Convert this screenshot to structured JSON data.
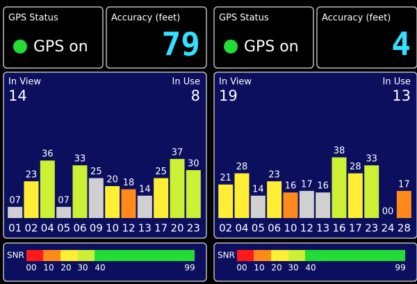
{
  "panels": [
    {
      "gps_status_label": "GPS Status",
      "gps_status": "GPS on",
      "accuracy_label": "Accuracy (feet)",
      "accuracy": 79,
      "in_view_label": "In View",
      "in_view": 14,
      "in_use_label": "In Use",
      "in_use": 8,
      "snr_label": "SNR",
      "snr_scale": [
        "00",
        "10",
        "20",
        "30",
        "40",
        "99"
      ]
    },
    {
      "gps_status_label": "GPS Status",
      "gps_status": "GPS on",
      "accuracy_label": "Accuracy (feet)",
      "accuracy": 4,
      "in_view_label": "In View",
      "in_view": 19,
      "in_use_label": "In Use",
      "in_use": 13,
      "snr_label": "SNR",
      "snr_scale": [
        "00",
        "10",
        "20",
        "30",
        "40",
        "99"
      ]
    }
  ],
  "snr_colors": [
    "#ff1a1a",
    "#ff8a1a",
    "#ffee33",
    "#ccf033",
    "#22dd33"
  ],
  "chart_data": [
    {
      "type": "bar",
      "categories": [
        "01",
        "02",
        "04",
        "05",
        "06",
        "09",
        "10",
        "12",
        "13",
        "17",
        "20",
        "23"
      ],
      "values": [
        7,
        23,
        36,
        7,
        33,
        25,
        20,
        18,
        14,
        25,
        37,
        30
      ],
      "value_labels": [
        "07",
        "23",
        "36",
        "07",
        "33",
        "25",
        "20",
        "18",
        "14",
        "25",
        "37",
        "30"
      ],
      "colors": [
        "#d0d0d0",
        "#ffee33",
        "#ccf033",
        "#d0d0d0",
        "#ccf033",
        "#d0d0d0",
        "#ffee33",
        "#ff8a1a",
        "#d0d0d0",
        "#ffee33",
        "#ccf033",
        "#ccf033"
      ],
      "ylim": [
        0,
        50
      ]
    },
    {
      "type": "bar",
      "categories": [
        "02",
        "04",
        "05",
        "06",
        "10",
        "12",
        "13",
        "16",
        "17",
        "23",
        "24",
        "28"
      ],
      "values": [
        21,
        28,
        14,
        23,
        16,
        17,
        16,
        38,
        28,
        33,
        0,
        17
      ],
      "value_labels": [
        "21",
        "28",
        "14",
        "23",
        "16",
        "17",
        "16",
        "38",
        "28",
        "33",
        "00",
        "17"
      ],
      "colors": [
        "#ffee33",
        "#ffee33",
        "#d0d0d0",
        "#ffee33",
        "#ff8a1a",
        "#d0d0d0",
        "#d0d0d0",
        "#ccf033",
        "#ffee33",
        "#ccf033",
        "#d0d0d0",
        "#ff8a1a"
      ],
      "ylim": [
        0,
        50
      ]
    }
  ]
}
